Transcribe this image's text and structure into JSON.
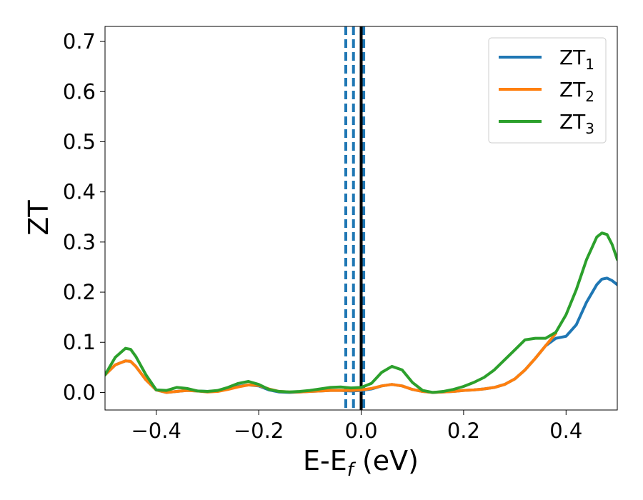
{
  "chart_data": {
    "type": "line",
    "title": "",
    "xlabel": "E-E",
    "xlabel_sub": "f",
    "xlabel_unit": " (eV)",
    "ylabel": "ZT",
    "xlim": [
      -0.5,
      0.5
    ],
    "ylim": [
      -0.035,
      0.73
    ],
    "xticks": [
      -0.4,
      -0.2,
      0.0,
      0.2,
      0.4
    ],
    "xtick_labels": [
      "−0.4",
      "−0.2",
      "0.0",
      "0.2",
      "0.4"
    ],
    "yticks": [
      0.0,
      0.1,
      0.2,
      0.3,
      0.4,
      0.5,
      0.6,
      0.7
    ],
    "ytick_labels": [
      "0.0",
      "0.1",
      "0.2",
      "0.3",
      "0.4",
      "0.5",
      "0.6",
      "0.7"
    ],
    "grid": false,
    "legend_position": "top-right",
    "vertical_lines": [
      {
        "x": -0.03,
        "style": "dashed",
        "color": "#1f77b4"
      },
      {
        "x": -0.015,
        "style": "dashed",
        "color": "#1f77b4"
      },
      {
        "x": 0.005,
        "style": "dashed",
        "color": "#1f77b4"
      },
      {
        "x": 0.0,
        "style": "solid",
        "color": "#000000"
      }
    ],
    "series": [
      {
        "name": "ZT",
        "sub": "1",
        "color": "#1f77b4",
        "x": [
          -0.5,
          -0.48,
          -0.46,
          -0.45,
          -0.44,
          -0.42,
          -0.4,
          -0.38,
          -0.36,
          -0.34,
          -0.32,
          -0.3,
          -0.28,
          -0.26,
          -0.24,
          -0.22,
          -0.2,
          -0.18,
          -0.16,
          -0.14,
          -0.12,
          -0.1,
          -0.08,
          -0.06,
          -0.04,
          -0.02,
          0.0,
          0.02,
          0.04,
          0.06,
          0.08,
          0.1,
          0.12,
          0.14,
          0.16,
          0.18,
          0.2,
          0.22,
          0.24,
          0.26,
          0.28,
          0.3,
          0.32,
          0.34,
          0.36,
          0.38,
          0.4,
          0.42,
          0.44,
          0.46,
          0.47,
          0.48,
          0.49,
          0.5
        ],
        "y": [
          0.035,
          0.055,
          0.063,
          0.062,
          0.052,
          0.025,
          0.005,
          0.0,
          0.002,
          0.004,
          0.003,
          0.002,
          0.003,
          0.007,
          0.012,
          0.015,
          0.013,
          0.005,
          0.001,
          0.0,
          0.001,
          0.002,
          0.003,
          0.004,
          0.004,
          0.003,
          0.004,
          0.007,
          0.013,
          0.016,
          0.013,
          0.006,
          0.002,
          0.0,
          0.001,
          0.002,
          0.004,
          0.005,
          0.007,
          0.01,
          0.016,
          0.027,
          0.045,
          0.068,
          0.093,
          0.108,
          0.112,
          0.135,
          0.18,
          0.215,
          0.226,
          0.228,
          0.223,
          0.215
        ]
      },
      {
        "name": "ZT",
        "sub": "2",
        "color": "#ff7f0e",
        "x": [
          -0.5,
          -0.48,
          -0.46,
          -0.45,
          -0.44,
          -0.42,
          -0.4,
          -0.38,
          -0.36,
          -0.34,
          -0.32,
          -0.3,
          -0.28,
          -0.26,
          -0.24,
          -0.22,
          -0.2,
          -0.18,
          -0.16,
          -0.14,
          -0.12,
          -0.1,
          -0.08,
          -0.06,
          -0.04,
          -0.02,
          0.0,
          0.02,
          0.04,
          0.06,
          0.08,
          0.1,
          0.12,
          0.14,
          0.16,
          0.18,
          0.2,
          0.22,
          0.24,
          0.26,
          0.28,
          0.3,
          0.32,
          0.34,
          0.36,
          0.38
        ],
        "y": [
          0.035,
          0.055,
          0.063,
          0.062,
          0.052,
          0.025,
          0.005,
          0.0,
          0.002,
          0.004,
          0.003,
          0.001,
          0.002,
          0.006,
          0.011,
          0.015,
          0.014,
          0.007,
          0.002,
          0.001,
          0.001,
          0.002,
          0.003,
          0.004,
          0.004,
          0.004,
          0.005,
          0.008,
          0.013,
          0.016,
          0.013,
          0.006,
          0.002,
          0.0,
          0.001,
          0.002,
          0.004,
          0.005,
          0.007,
          0.01,
          0.016,
          0.027,
          0.045,
          0.068,
          0.093,
          0.118
        ]
      },
      {
        "name": "ZT",
        "sub": "3",
        "color": "#2ca02c",
        "x": [
          -0.5,
          -0.48,
          -0.46,
          -0.45,
          -0.44,
          -0.42,
          -0.4,
          -0.38,
          -0.36,
          -0.34,
          -0.32,
          -0.3,
          -0.28,
          -0.26,
          -0.24,
          -0.22,
          -0.2,
          -0.18,
          -0.16,
          -0.14,
          -0.12,
          -0.1,
          -0.08,
          -0.06,
          -0.04,
          -0.02,
          0.0,
          0.02,
          0.04,
          0.06,
          0.08,
          0.1,
          0.12,
          0.14,
          0.16,
          0.18,
          0.2,
          0.22,
          0.24,
          0.26,
          0.28,
          0.3,
          0.32,
          0.34,
          0.36,
          0.38,
          0.4,
          0.42,
          0.44,
          0.46,
          0.47,
          0.48,
          0.49,
          0.5
        ],
        "y": [
          0.035,
          0.07,
          0.088,
          0.086,
          0.072,
          0.035,
          0.005,
          0.004,
          0.01,
          0.008,
          0.003,
          0.002,
          0.004,
          0.01,
          0.018,
          0.022,
          0.016,
          0.006,
          0.002,
          0.001,
          0.002,
          0.004,
          0.007,
          0.01,
          0.011,
          0.009,
          0.01,
          0.018,
          0.04,
          0.052,
          0.045,
          0.02,
          0.004,
          0.0,
          0.002,
          0.006,
          0.012,
          0.02,
          0.03,
          0.045,
          0.065,
          0.085,
          0.105,
          0.108,
          0.108,
          0.12,
          0.155,
          0.205,
          0.265,
          0.31,
          0.318,
          0.315,
          0.295,
          0.265
        ]
      }
    ]
  }
}
